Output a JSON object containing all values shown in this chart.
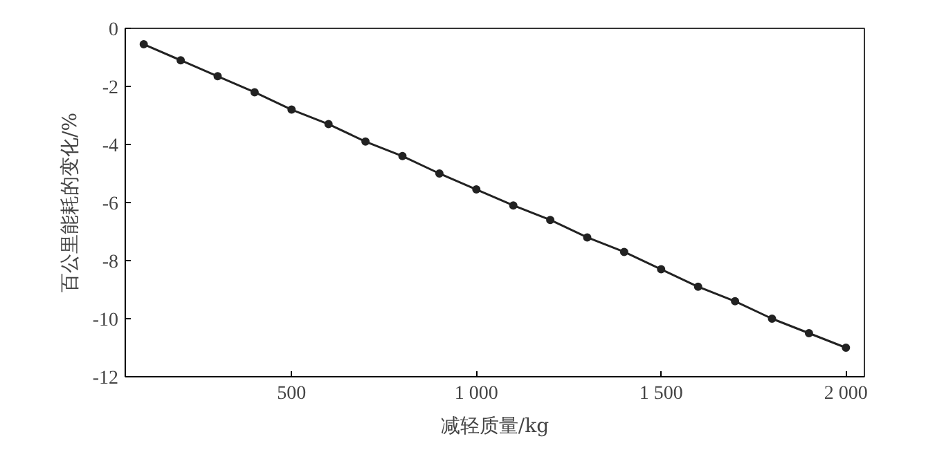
{
  "chart_data": {
    "type": "line",
    "xlabel": "减轻质量/kg",
    "ylabel": "百公里能耗的变化/%",
    "x": [
      100,
      200,
      300,
      400,
      500,
      600,
      700,
      800,
      900,
      1000,
      1100,
      1200,
      1300,
      1400,
      1500,
      1600,
      1700,
      1800,
      1900,
      2000
    ],
    "series": [
      {
        "color": "#222222",
        "values": [
          -0.55,
          -1.1,
          -1.65,
          -2.2,
          -2.8,
          -3.3,
          -3.9,
          -4.4,
          -5.0,
          -5.55,
          -6.1,
          -6.6,
          -7.2,
          -7.7,
          -8.3,
          -8.9,
          -9.4,
          -10.0,
          -10.5,
          -11.0
        ]
      }
    ],
    "xlim": [
      50,
      2050
    ],
    "ylim": [
      -12,
      0
    ],
    "xticks": [
      {
        "value": 500,
        "label": "500"
      },
      {
        "value": 1000,
        "label": "1 000"
      },
      {
        "value": 1500,
        "label": "1 500"
      },
      {
        "value": 2000,
        "label": "2 000"
      }
    ],
    "yticks": [
      0,
      -2,
      -4,
      -6,
      -8,
      -10,
      -12
    ],
    "marker": "circle",
    "line_style": "solid",
    "grid": false
  }
}
